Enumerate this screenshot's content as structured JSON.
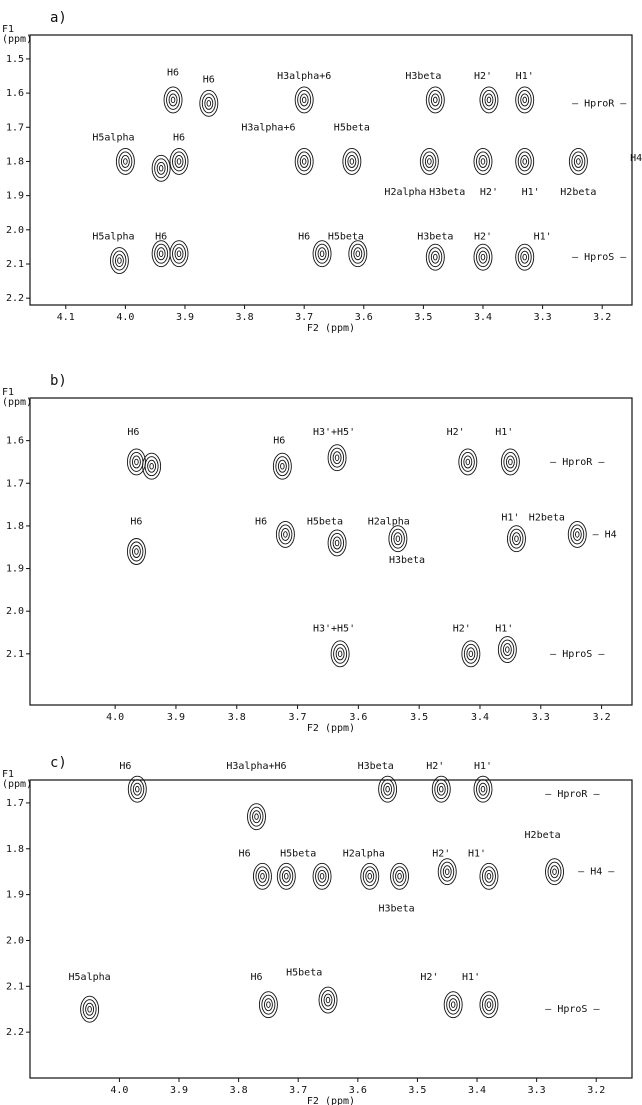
{
  "chart_data": [
    {
      "type": "contour",
      "panel_label": "a)",
      "x_label": "F2 (ppm)",
      "y_label_lines": [
        "F1",
        "(ppm)"
      ],
      "xlim": [
        4.16,
        3.15
      ],
      "ylim": [
        1.43,
        2.22
      ],
      "xticks": [
        4.1,
        {
          "value": 4,
          "label": "4.0"
        },
        3.9,
        3.8,
        3.7,
        3.6,
        3.5,
        3.4,
        3.3,
        3.2
      ],
      "yticks": [
        1.5,
        1.6,
        1.7,
        1.8,
        1.9,
        {
          "value": 2,
          "label": "2.0"
        },
        2.1,
        2.2
      ],
      "peaks": {
        "x": [
          3.92,
          3.86,
          3.7,
          3.48,
          3.39,
          3.33,
          4.0,
          3.94,
          3.91,
          3.7,
          3.62,
          3.49,
          3.4,
          3.33,
          3.24,
          4.01,
          3.94,
          3.91,
          3.67,
          3.61,
          3.48,
          3.4,
          3.33
        ],
        "y": [
          1.62,
          1.63,
          1.62,
          1.62,
          1.62,
          1.62,
          1.8,
          1.82,
          1.8,
          1.8,
          1.8,
          1.8,
          1.8,
          1.8,
          1.8,
          2.09,
          2.07,
          2.07,
          2.07,
          2.07,
          2.08,
          2.08,
          2.08
        ]
      },
      "annotations": [
        {
          "text": "H6",
          "x": 3.92,
          "y": 1.54
        },
        {
          "text": "H6",
          "x": 3.86,
          "y": 1.56
        },
        {
          "text": "H3alpha+6",
          "x": 3.7,
          "y": 1.55
        },
        {
          "text": "H3beta",
          "x": 3.5,
          "y": 1.55
        },
        {
          "text": "H2'",
          "x": 3.4,
          "y": 1.55
        },
        {
          "text": "H1'",
          "x": 3.33,
          "y": 1.55
        },
        {
          "text": "H5alpha",
          "x": 4.02,
          "y": 1.73
        },
        {
          "text": "H6",
          "x": 3.91,
          "y": 1.73
        },
        {
          "text": "H3alpha+6",
          "x": 3.76,
          "y": 1.7
        },
        {
          "text": "H5beta",
          "x": 3.62,
          "y": 1.7
        },
        {
          "text": "H2alpha",
          "x": 3.53,
          "y": 1.89
        },
        {
          "text": "H3beta",
          "x": 3.46,
          "y": 1.89
        },
        {
          "text": "H2'",
          "x": 3.39,
          "y": 1.89
        },
        {
          "text": "H1'",
          "x": 3.32,
          "y": 1.89
        },
        {
          "text": "H2beta",
          "x": 3.24,
          "y": 1.89
        },
        {
          "text": "H5alpha",
          "x": 4.02,
          "y": 2.02
        },
        {
          "text": "H6",
          "x": 3.94,
          "y": 2.02
        },
        {
          "text": "H6",
          "x": 3.7,
          "y": 2.02
        },
        {
          "text": "H5beta",
          "x": 3.63,
          "y": 2.02
        },
        {
          "text": "H3beta",
          "x": 3.48,
          "y": 2.02
        },
        {
          "text": "H2'",
          "x": 3.4,
          "y": 2.02
        },
        {
          "text": "H1'",
          "x": 3.3,
          "y": 2.02
        },
        {
          "text": "— HproR —",
          "x": 3.205,
          "y": 1.63
        },
        {
          "text": "H4",
          "x": 3.143,
          "y": 1.79
        },
        {
          "text": "— HproS —",
          "x": 3.205,
          "y": 2.08
        }
      ]
    },
    {
      "type": "contour",
      "panel_label": "b)",
      "x_label": "F2 (ppm)",
      "y_label_lines": [
        "F1",
        "(ppm)"
      ],
      "xlim": [
        4.14,
        3.15
      ],
      "ylim": [
        1.5,
        2.22
      ],
      "xticks": [
        {
          "value": 4,
          "label": "4.0"
        },
        3.9,
        3.8,
        3.7,
        3.6,
        3.5,
        3.4,
        3.3,
        3.2
      ],
      "yticks": [
        1.6,
        1.7,
        1.8,
        1.9,
        {
          "value": 2,
          "label": "2.0"
        },
        2.1
      ],
      "peaks": {
        "x": [
          3.965,
          3.94,
          3.725,
          3.635,
          3.42,
          3.35,
          3.965,
          3.72,
          3.635,
          3.535,
          3.34,
          3.24,
          3.63,
          3.415,
          3.355
        ],
        "y": [
          1.65,
          1.66,
          1.66,
          1.64,
          1.65,
          1.65,
          1.86,
          1.82,
          1.84,
          1.83,
          1.83,
          1.82,
          2.1,
          2.1,
          2.09
        ]
      },
      "annotations": [
        {
          "text": "H6",
          "x": 3.97,
          "y": 1.58
        },
        {
          "text": "H6",
          "x": 3.73,
          "y": 1.6
        },
        {
          "text": "H3'+H5'",
          "x": 3.64,
          "y": 1.58
        },
        {
          "text": "H2'",
          "x": 3.44,
          "y": 1.58
        },
        {
          "text": "H1'",
          "x": 3.36,
          "y": 1.58
        },
        {
          "text": "H6",
          "x": 3.965,
          "y": 1.79
        },
        {
          "text": "H6",
          "x": 3.76,
          "y": 1.79
        },
        {
          "text": "H5beta",
          "x": 3.655,
          "y": 1.79
        },
        {
          "text": "H2alpha",
          "x": 3.55,
          "y": 1.79
        },
        {
          "text": "H1'",
          "x": 3.35,
          "y": 1.78
        },
        {
          "text": "H2beta",
          "x": 3.29,
          "y": 1.78
        },
        {
          "text": "H3beta",
          "x": 3.52,
          "y": 1.88
        },
        {
          "text": "H3'+H5'",
          "x": 3.64,
          "y": 2.04
        },
        {
          "text": "H2'",
          "x": 3.43,
          "y": 2.04
        },
        {
          "text": "H1'",
          "x": 3.36,
          "y": 2.04
        },
        {
          "text": "— HproR —",
          "x": 3.24,
          "y": 1.65
        },
        {
          "text": "— H4",
          "x": 3.195,
          "y": 1.82
        },
        {
          "text": "— HproS —",
          "x": 3.24,
          "y": 2.1
        }
      ]
    },
    {
      "type": "contour",
      "panel_label": "c)",
      "x_label": "F2 (ppm)",
      "y_label_lines": [
        "F1",
        "(ppm)"
      ],
      "xlim": [
        4.15,
        3.14
      ],
      "ylim": [
        1.65,
        2.3
      ],
      "xticks": [
        {
          "value": 4,
          "label": "4.0"
        },
        3.9,
        3.8,
        3.7,
        3.6,
        3.5,
        3.4,
        3.3,
        3.2
      ],
      "yticks": [
        1.7,
        1.8,
        1.9,
        {
          "value": 2,
          "label": "2.0"
        },
        2.1,
        2.2
      ],
      "peaks": {
        "x": [
          3.97,
          3.77,
          3.55,
          3.46,
          3.39,
          3.76,
          3.72,
          3.66,
          3.58,
          3.53,
          3.45,
          3.38,
          3.27,
          4.05,
          3.75,
          3.65,
          3.44,
          3.38
        ],
        "y": [
          1.67,
          1.73,
          1.67,
          1.67,
          1.67,
          1.86,
          1.86,
          1.86,
          1.86,
          1.86,
          1.85,
          1.86,
          1.85,
          2.15,
          2.14,
          2.13,
          2.14,
          2.14
        ]
      },
      "annotations": [
        {
          "text": "H6",
          "x": 3.99,
          "y": 1.62
        },
        {
          "text": "H3alpha+H6",
          "x": 3.77,
          "y": 1.62
        },
        {
          "text": "H3beta",
          "x": 3.57,
          "y": 1.62
        },
        {
          "text": "H2'",
          "x": 3.47,
          "y": 1.62
        },
        {
          "text": "H1'",
          "x": 3.39,
          "y": 1.62
        },
        {
          "text": "H6",
          "x": 3.79,
          "y": 1.81
        },
        {
          "text": "H5beta",
          "x": 3.7,
          "y": 1.81
        },
        {
          "text": "H2alpha",
          "x": 3.59,
          "y": 1.81
        },
        {
          "text": "H2'",
          "x": 3.46,
          "y": 1.81
        },
        {
          "text": "H1'",
          "x": 3.4,
          "y": 1.81
        },
        {
          "text": "H2beta",
          "x": 3.29,
          "y": 1.77
        },
        {
          "text": "H3beta",
          "x": 3.535,
          "y": 1.93
        },
        {
          "text": "H5alpha",
          "x": 4.05,
          "y": 2.08
        },
        {
          "text": "H6",
          "x": 3.77,
          "y": 2.08
        },
        {
          "text": "H5beta",
          "x": 3.69,
          "y": 2.07
        },
        {
          "text": "H2'",
          "x": 3.48,
          "y": 2.08
        },
        {
          "text": "H1'",
          "x": 3.41,
          "y": 2.08
        },
        {
          "text": "— HproR —",
          "x": 3.24,
          "y": 1.68
        },
        {
          "text": "— H4 —",
          "x": 3.2,
          "y": 1.85
        },
        {
          "text": "— HproS —",
          "x": 3.24,
          "y": 2.15
        }
      ]
    }
  ]
}
